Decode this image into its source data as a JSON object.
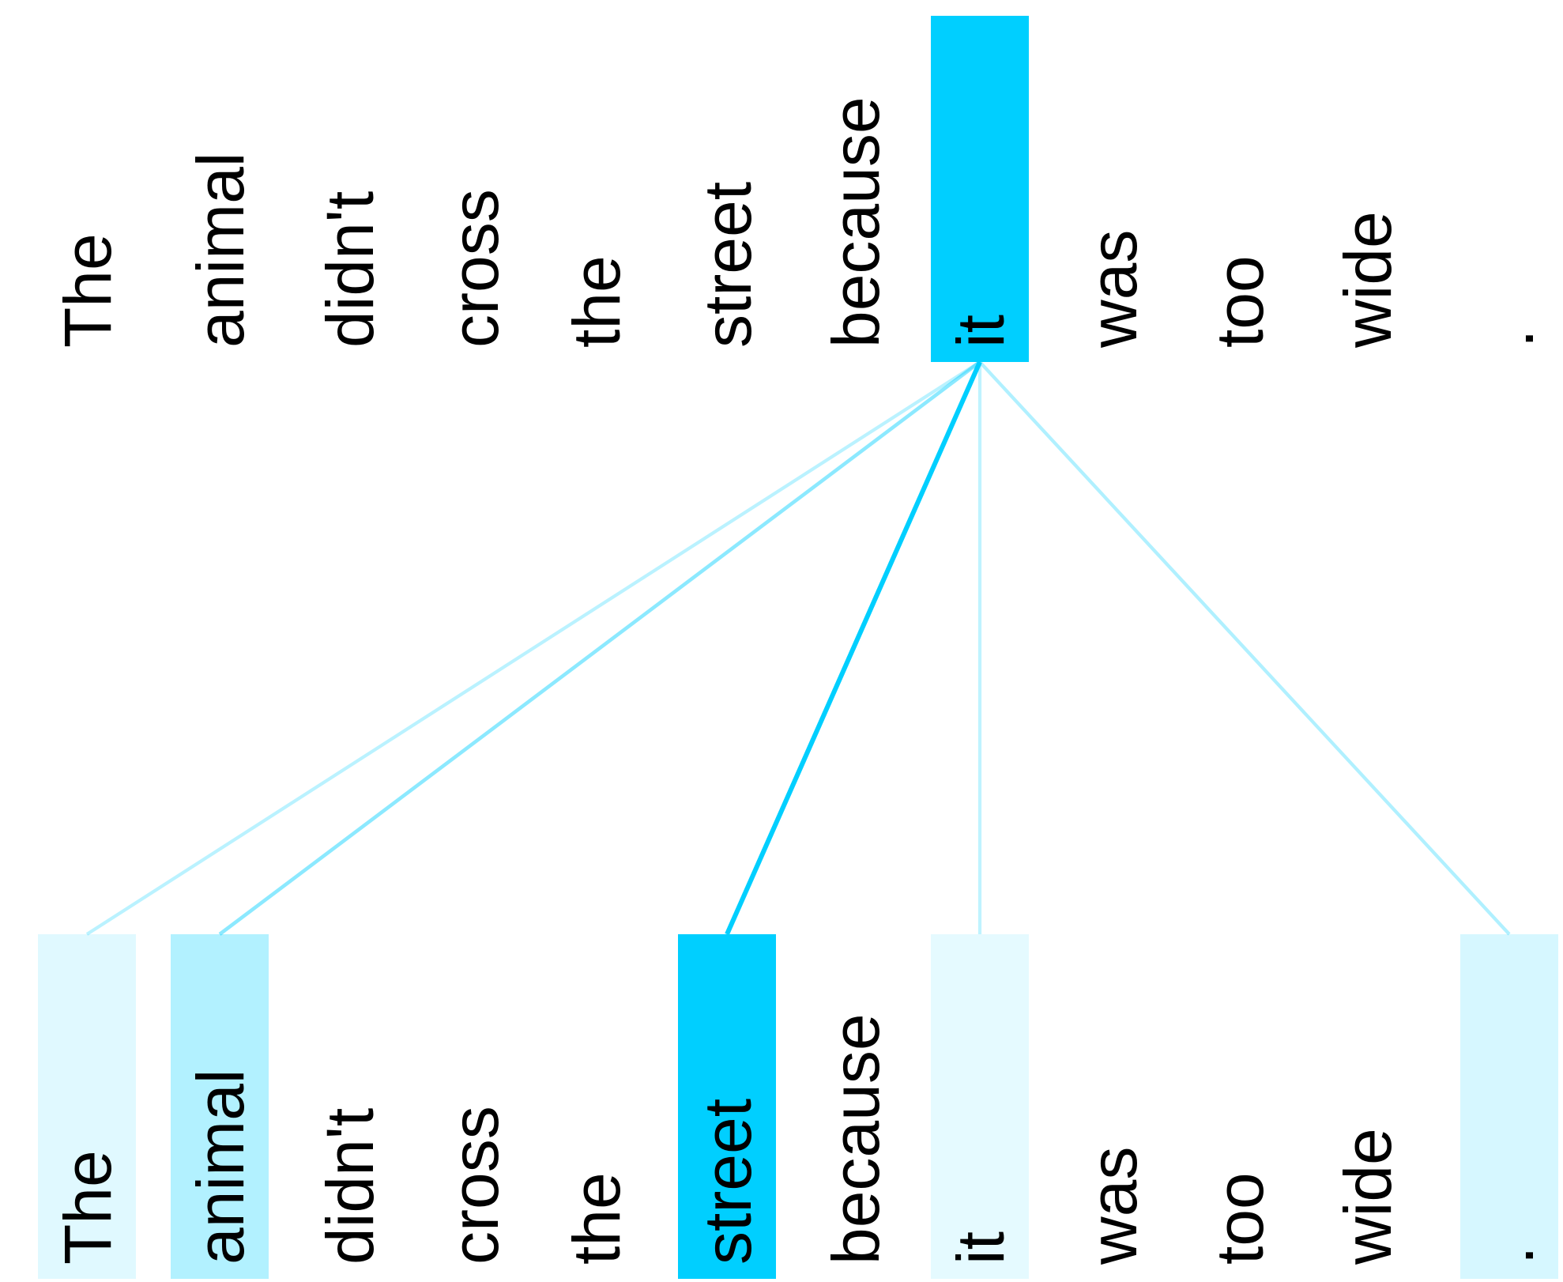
{
  "sentence": {
    "query_tokens": [
      "The",
      "animal",
      "didn't",
      "cross",
      "the",
      "street",
      "because",
      "it",
      "was",
      "too",
      "wide",
      "."
    ],
    "key_tokens": [
      "The",
      "animal",
      "didn't",
      "cross",
      "the",
      "street",
      "because",
      "it",
      "was",
      "too",
      "wide",
      "."
    ]
  },
  "attention": {
    "query_index": 7,
    "links": [
      {
        "key_index": 0,
        "weight": 0.12
      },
      {
        "key_index": 1,
        "weight": 0.3
      },
      {
        "key_index": 5,
        "weight": 1.0
      },
      {
        "key_index": 7,
        "weight": 0.1
      },
      {
        "key_index": 11,
        "weight": 0.16
      }
    ]
  },
  "colors": {
    "accent": "#00cfff",
    "background": "#ffffff",
    "text": "#000000"
  }
}
